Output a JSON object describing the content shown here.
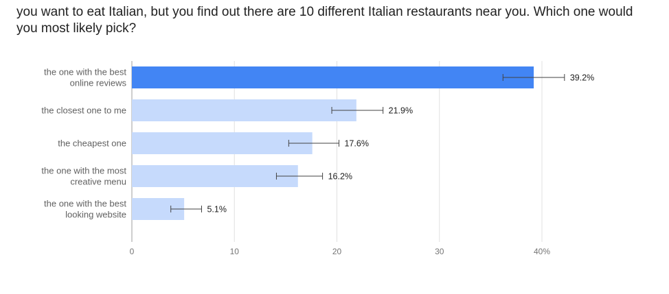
{
  "title": "you want to eat Italian, but you find out there are 10 different Italian restaurants near you. Which one would you most likely pick?",
  "chart_data": {
    "type": "bar",
    "orientation": "horizontal",
    "title": "you want to eat Italian, but you find out there are 10 different Italian restaurants near you. Which one would you most likely pick?",
    "categories": [
      [
        "the one with the best",
        "online reviews"
      ],
      [
        "the closest one to me"
      ],
      [
        "the cheapest one"
      ],
      [
        "the one with the most",
        "creative menu"
      ],
      [
        "the one with the best",
        "looking website"
      ]
    ],
    "values": [
      39.2,
      21.9,
      17.6,
      16.2,
      5.1
    ],
    "value_labels": [
      "39.2%",
      "21.9%",
      "17.6%",
      "16.2%",
      "5.1%"
    ],
    "error_low": [
      36.2,
      19.5,
      15.3,
      14.1,
      3.8
    ],
    "error_high": [
      42.2,
      24.5,
      20.2,
      18.6,
      6.8
    ],
    "highlight_index": 0,
    "xlim": [
      0,
      40
    ],
    "xticks": [
      0,
      10,
      20,
      30,
      40
    ],
    "xtick_labels": [
      "0",
      "10",
      "20",
      "30",
      "40%"
    ],
    "grid": true,
    "colors": {
      "highlight": "#4285f4",
      "bar": "#c6dafc",
      "grid": "#e0e0e0",
      "axis": "#9e9e9e",
      "error": "#424242"
    }
  }
}
